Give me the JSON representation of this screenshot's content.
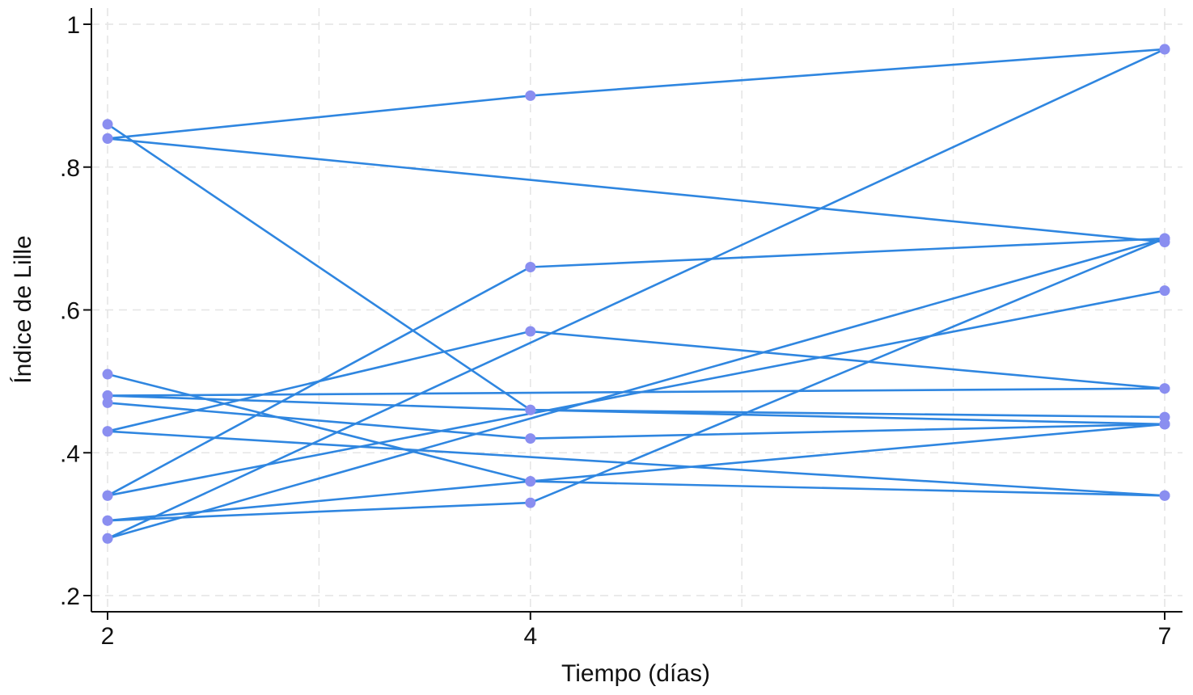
{
  "chart_data": {
    "type": "line",
    "title": "",
    "xlabel": "Tiempo (días)",
    "ylabel": "Índice de Lille",
    "x": [
      2,
      4,
      7
    ],
    "xticks": [
      {
        "value": 2,
        "label": "2"
      },
      {
        "value": 4,
        "label": "4"
      },
      {
        "value": 7,
        "label": "7"
      }
    ],
    "yticks": [
      {
        "value": 0.2,
        "label": ".2"
      },
      {
        "value": 0.4,
        "label": ".4"
      },
      {
        "value": 0.6,
        "label": ".6"
      },
      {
        "value": 0.8,
        "label": ".8"
      },
      {
        "value": 1,
        "label": "1"
      }
    ],
    "xlim": [
      2,
      7
    ],
    "ylim": [
      0.2,
      1
    ],
    "grid": true,
    "legend": "none",
    "line_color": "#2f86e0",
    "marker_color": "#8a8ef0",
    "series": [
      {
        "values": [
          0.84,
          0.9,
          0.965
        ]
      },
      {
        "values": [
          0.84,
          null,
          0.695
        ]
      },
      {
        "values": [
          0.86,
          0.46,
          0.45
        ]
      },
      {
        "values": [
          0.51,
          0.36,
          0.34
        ]
      },
      {
        "values": [
          0.48,
          0.46,
          0.44
        ]
      },
      {
        "values": [
          0.47,
          0.42,
          0.44
        ]
      },
      {
        "values": [
          0.48,
          null,
          0.49
        ]
      },
      {
        "values": [
          0.43,
          0.57,
          0.49
        ]
      },
      {
        "values": [
          0.43,
          null,
          0.34
        ]
      },
      {
        "values": [
          0.34,
          0.66,
          0.7
        ]
      },
      {
        "values": [
          0.34,
          null,
          0.627
        ]
      },
      {
        "values": [
          0.305,
          0.33,
          0.7
        ]
      },
      {
        "values": [
          0.305,
          0.36,
          0.44
        ]
      },
      {
        "values": [
          0.28,
          null,
          0.965
        ]
      },
      {
        "values": [
          0.28,
          null,
          0.7
        ]
      }
    ]
  }
}
